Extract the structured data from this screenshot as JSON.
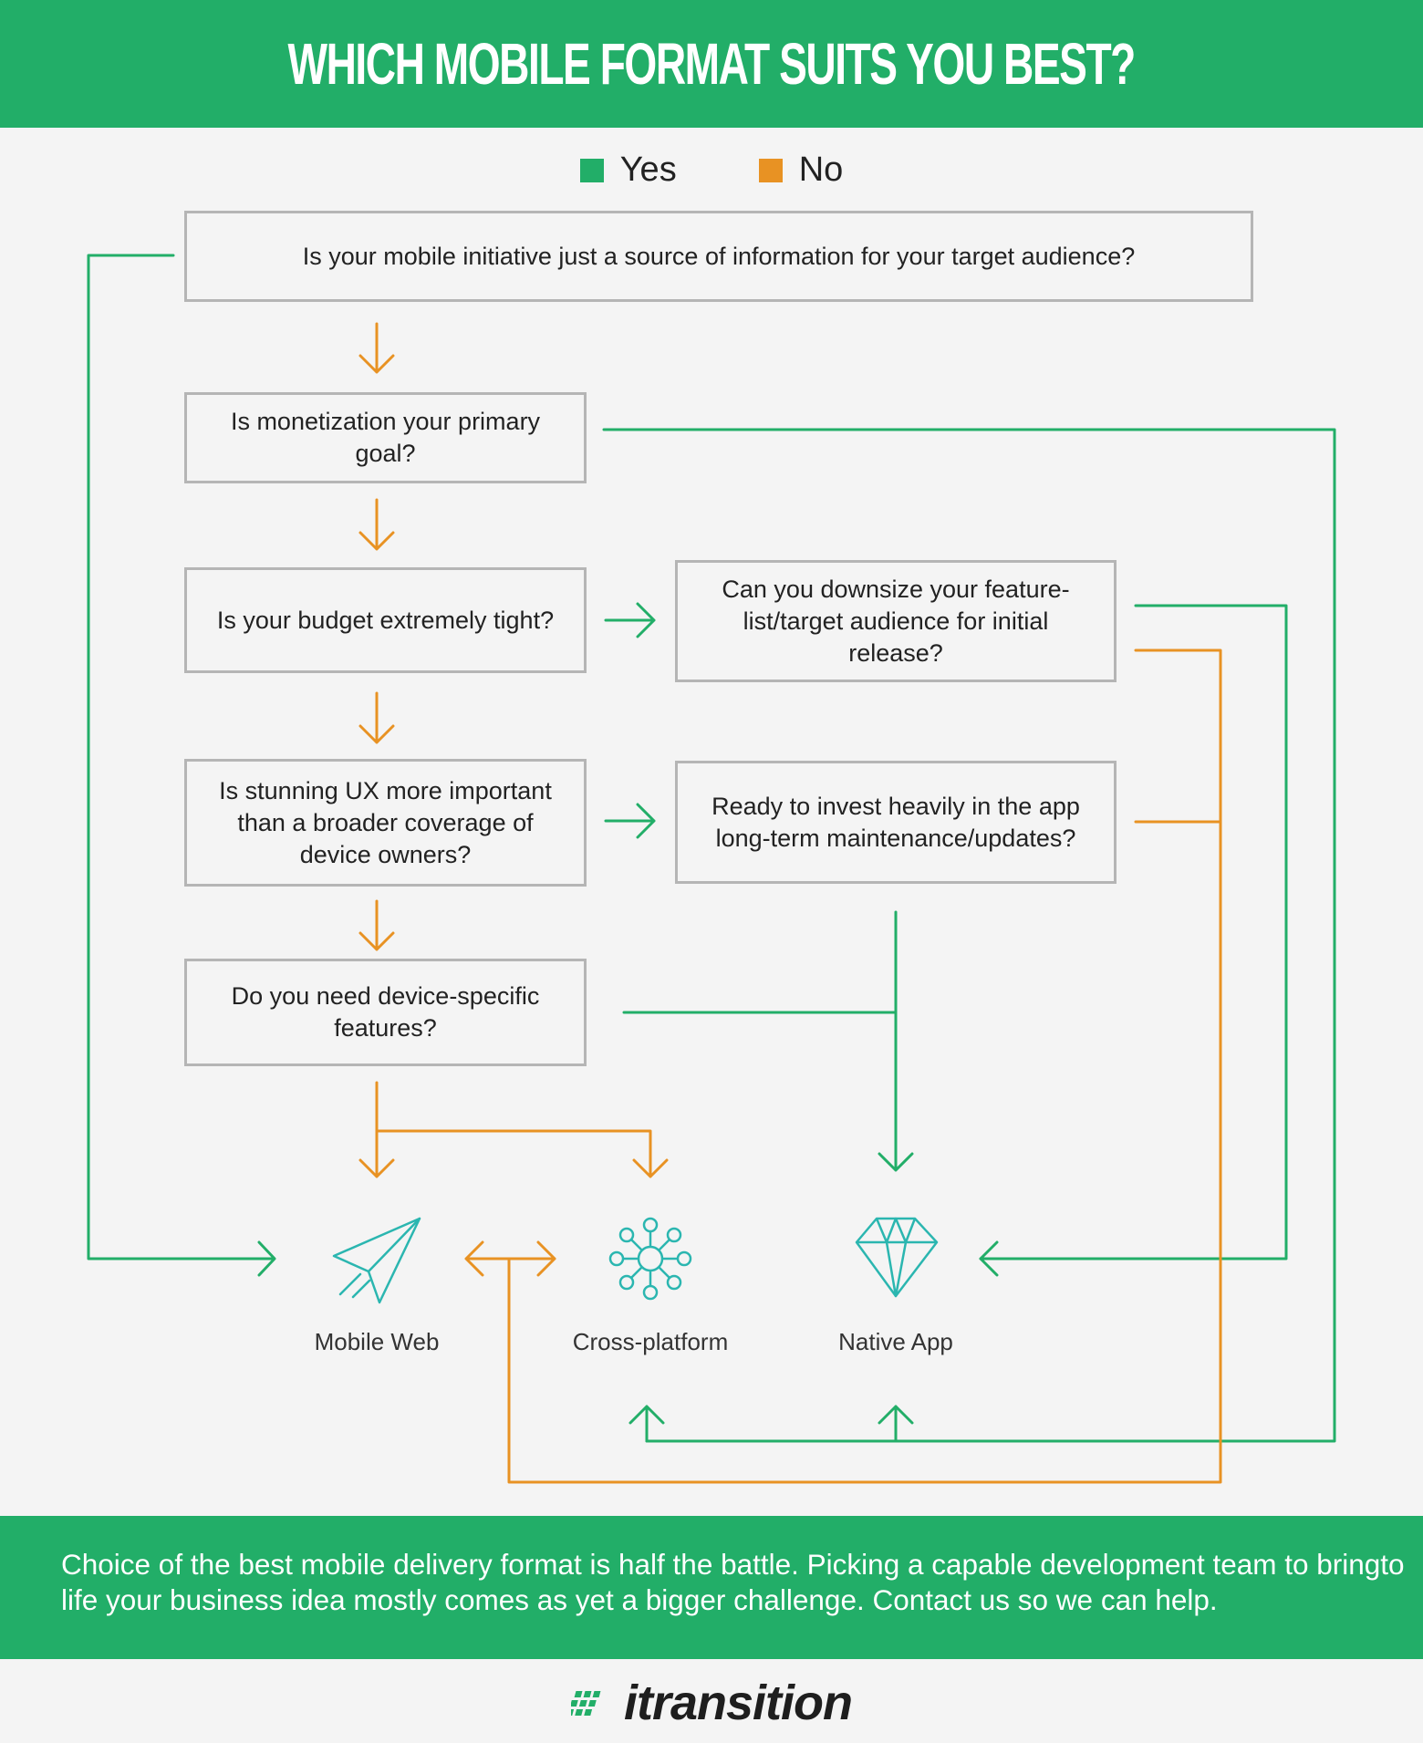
{
  "title": "WHICH MOBILE FORMAT SUITS YOU BEST?",
  "legend": {
    "yes": {
      "label": "Yes",
      "color": "#22ae68"
    },
    "no": {
      "label": "No",
      "color": "#e89223"
    }
  },
  "questions": {
    "q1": "Is your mobile initiative just a source of information for your target audience?",
    "q2": "Is monetization your primary goal?",
    "q3": "Is your budget extremely tight?",
    "q4": "Is stunning UX more important than a broader coverage of device owners?",
    "q5": "Do you need device-specific features?",
    "q6": "Can you downsize your feature-list/target audience for initial release?",
    "q7": "Ready to invest heavily in the app long-term maintenance/updates?"
  },
  "outcomes": {
    "mobile_web": "Mobile Web",
    "cross_platform": "Cross-platform",
    "native_app": "Native App"
  },
  "footer": {
    "text": "Choice of the best mobile delivery format is half the battle. Picking a capable development team to bringto life your business idea mostly comes as yet a bigger challenge. Contact us so we can help."
  },
  "logo": {
    "text": "itransition"
  },
  "icons": [
    "paper-plane-icon",
    "network-hub-icon",
    "diamond-icon"
  ]
}
